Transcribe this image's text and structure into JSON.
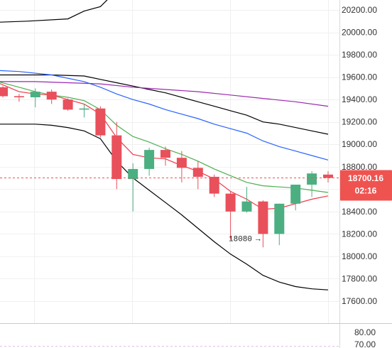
{
  "chart_data": {
    "type": "candlestick",
    "price_axis": {
      "ticks": [
        20200,
        20000,
        19800,
        19600,
        19400,
        19200,
        19000,
        18800,
        18600,
        18400,
        18200,
        18000,
        17800,
        17600
      ],
      "tick_labels": [
        "20200.00",
        "20000.00",
        "19800.00",
        "19600.00",
        "19400.00",
        "19200.00",
        "19000.00",
        "18800.00",
        "18600.00",
        "18400.00",
        "18200.00",
        "18000.00",
        "17800.00",
        "17600.00"
      ],
      "range": [
        17548,
        20312
      ]
    },
    "indicator_axis": {
      "tick_labels": [
        "80.00",
        "70.00"
      ],
      "ticks": [
        80,
        70
      ]
    },
    "last_price": {
      "value": 18700.16,
      "label": "18700.16",
      "countdown": "02:16",
      "color": "#ef5350"
    },
    "annotation": {
      "text": "18080",
      "arrow": "→",
      "price": 18080
    },
    "candles": [
      {
        "o": 19510,
        "h": 19520,
        "l": 19420,
        "c": 19430
      },
      {
        "o": 19430,
        "h": 19450,
        "l": 19380,
        "c": 19420
      },
      {
        "o": 19420,
        "h": 19500,
        "l": 19330,
        "c": 19470
      },
      {
        "o": 19470,
        "h": 19490,
        "l": 19360,
        "c": 19400
      },
      {
        "o": 19400,
        "h": 19410,
        "l": 19300,
        "c": 19310
      },
      {
        "o": 19310,
        "h": 19360,
        "l": 19240,
        "c": 19320
      },
      {
        "o": 19320,
        "h": 19340,
        "l": 19060,
        "c": 19080
      },
      {
        "o": 19080,
        "h": 19200,
        "l": 18600,
        "c": 18690
      },
      {
        "o": 18690,
        "h": 18830,
        "l": 18400,
        "c": 18780
      },
      {
        "o": 18780,
        "h": 18970,
        "l": 18720,
        "c": 18950
      },
      {
        "o": 18950,
        "h": 18980,
        "l": 18810,
        "c": 18880
      },
      {
        "o": 18880,
        "h": 18940,
        "l": 18660,
        "c": 18790
      },
      {
        "o": 18790,
        "h": 18850,
        "l": 18600,
        "c": 18710
      },
      {
        "o": 18710,
        "h": 18730,
        "l": 18530,
        "c": 18560
      },
      {
        "o": 18560,
        "h": 18580,
        "l": 18150,
        "c": 18400
      },
      {
        "o": 18400,
        "h": 18620,
        "l": 18390,
        "c": 18490
      },
      {
        "o": 18490,
        "h": 18500,
        "l": 18080,
        "c": 18200
      },
      {
        "o": 18200,
        "h": 18470,
        "l": 18100,
        "c": 18470
      },
      {
        "o": 18470,
        "h": 18640,
        "l": 18410,
        "c": 18640
      },
      {
        "o": 18640,
        "h": 18760,
        "l": 18530,
        "c": 18740
      },
      {
        "o": 18730,
        "h": 18760,
        "l": 18660,
        "c": 18700
      }
    ],
    "lines": [
      {
        "color": "#000000",
        "values": [
          [
            -0.3,
            20090
          ],
          [
            1.5,
            20100
          ],
          [
            4,
            20120
          ],
          [
            5,
            20190
          ],
          [
            6,
            20230
          ],
          [
            6.7,
            20330
          ]
        ]
      },
      {
        "color": "#000000",
        "values": [
          [
            -0.3,
            19620
          ],
          [
            1,
            19620
          ],
          [
            3,
            19620
          ],
          [
            5,
            19610
          ],
          [
            6,
            19580
          ],
          [
            7,
            19550
          ],
          [
            8,
            19520
          ],
          [
            9,
            19490
          ],
          [
            10,
            19460
          ],
          [
            11,
            19420
          ],
          [
            12,
            19380
          ],
          [
            13,
            19340
          ],
          [
            14,
            19300
          ],
          [
            15,
            19260
          ],
          [
            16,
            19200
          ],
          [
            17,
            19180
          ],
          [
            18,
            19150
          ],
          [
            19,
            19120
          ],
          [
            20,
            19090
          ]
        ]
      },
      {
        "color": "#2962ff",
        "values": [
          [
            -0.3,
            19660
          ],
          [
            1,
            19650
          ],
          [
            3,
            19620
          ],
          [
            5,
            19560
          ],
          [
            6,
            19510
          ],
          [
            7,
            19450
          ],
          [
            8,
            19400
          ],
          [
            9,
            19360
          ],
          [
            10,
            19310
          ],
          [
            11,
            19270
          ],
          [
            12,
            19230
          ],
          [
            13,
            19180
          ],
          [
            14,
            19140
          ],
          [
            15,
            19100
          ],
          [
            16,
            19030
          ],
          [
            17,
            18980
          ],
          [
            18,
            18940
          ],
          [
            19,
            18900
          ],
          [
            20,
            18860
          ]
        ]
      },
      {
        "color": "#9c27b0",
        "values": [
          [
            -0.3,
            19560
          ],
          [
            2,
            19560
          ],
          [
            4,
            19550
          ],
          [
            6,
            19540
          ],
          [
            8,
            19510
          ],
          [
            10,
            19490
          ],
          [
            12,
            19470
          ],
          [
            14,
            19440
          ],
          [
            16,
            19410
          ],
          [
            18,
            19380
          ],
          [
            20,
            19340
          ]
        ]
      },
      {
        "color": "#4caf50",
        "values": [
          [
            -0.3,
            19560
          ],
          [
            1,
            19510
          ],
          [
            2,
            19470
          ],
          [
            3,
            19440
          ],
          [
            4,
            19420
          ],
          [
            5,
            19390
          ],
          [
            6,
            19310
          ],
          [
            7,
            19170
          ],
          [
            8,
            19070
          ],
          [
            9,
            19020
          ],
          [
            10,
            18960
          ],
          [
            11,
            18910
          ],
          [
            12,
            18850
          ],
          [
            13,
            18780
          ],
          [
            14,
            18720
          ],
          [
            15,
            18660
          ],
          [
            16,
            18630
          ],
          [
            17,
            18620
          ],
          [
            18,
            18610
          ],
          [
            19,
            18590
          ],
          [
            20,
            18570
          ]
        ]
      },
      {
        "color": "#f23645",
        "values": [
          [
            -0.3,
            19550
          ],
          [
            1,
            19470
          ],
          [
            2,
            19450
          ],
          [
            3,
            19440
          ],
          [
            4,
            19400
          ],
          [
            5,
            19360
          ],
          [
            6,
            19270
          ],
          [
            7,
            19060
          ],
          [
            8,
            18910
          ],
          [
            9,
            18880
          ],
          [
            10,
            18870
          ],
          [
            11,
            18810
          ],
          [
            12,
            18760
          ],
          [
            13,
            18690
          ],
          [
            14,
            18580
          ],
          [
            15,
            18510
          ],
          [
            16,
            18420
          ],
          [
            17,
            18430
          ],
          [
            18,
            18470
          ],
          [
            19,
            18510
          ],
          [
            20,
            18540
          ]
        ]
      },
      {
        "color": "#000000",
        "values": [
          [
            -0.3,
            19180
          ],
          [
            1,
            19180
          ],
          [
            2,
            19180
          ],
          [
            3,
            19170
          ],
          [
            4,
            19150
          ],
          [
            5,
            19120
          ],
          [
            6,
            19050
          ],
          [
            7,
            18850
          ],
          [
            8,
            18700
          ],
          [
            9,
            18590
          ],
          [
            10,
            18480
          ],
          [
            11,
            18370
          ],
          [
            12,
            18250
          ],
          [
            13,
            18130
          ],
          [
            14,
            18020
          ],
          [
            15,
            17930
          ],
          [
            16,
            17830
          ],
          [
            17,
            17770
          ],
          [
            18,
            17730
          ],
          [
            19,
            17710
          ],
          [
            20,
            17700
          ]
        ]
      }
    ],
    "grid": true,
    "legend": "none"
  }
}
